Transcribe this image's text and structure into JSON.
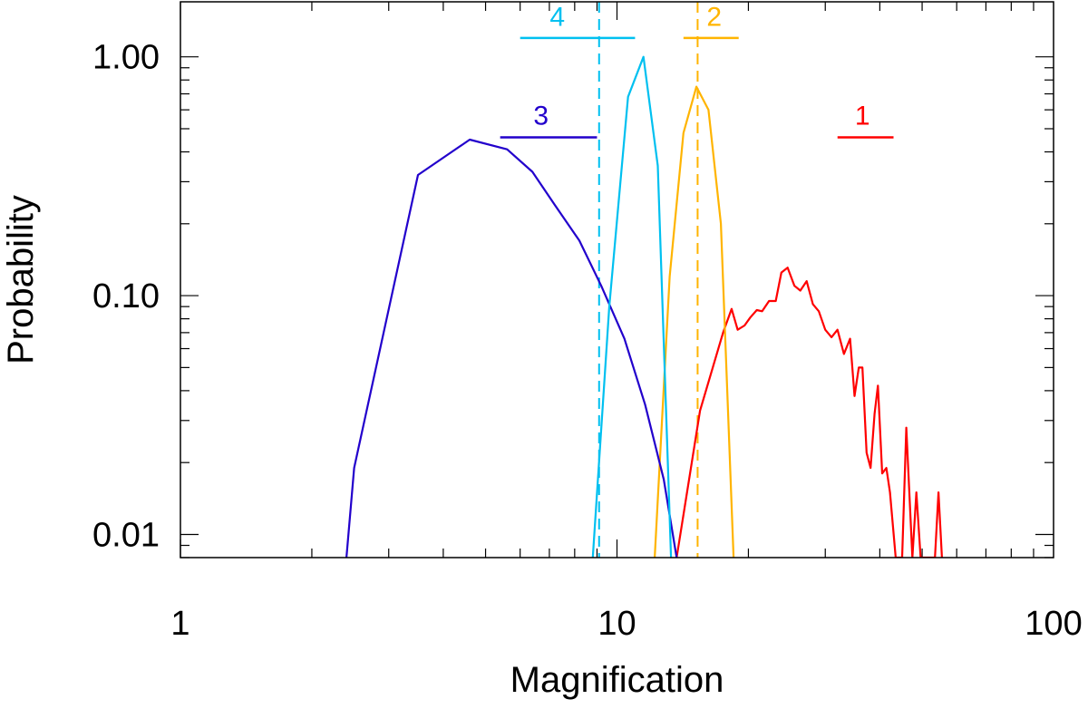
{
  "chart_data": {
    "type": "line",
    "xlabel": "Magnification",
    "ylabel": "Probability",
    "xscale": "log",
    "yscale": "log",
    "xlim": [
      1,
      100
    ],
    "ylim": [
      0.008,
      1.7
    ],
    "x_tick_labels": [
      "1",
      "10",
      "100"
    ],
    "x_ticks": [
      1,
      10,
      100
    ],
    "y_tick_labels": [
      "0.01",
      "0.10",
      "1.00"
    ],
    "y_ticks": [
      0.01,
      0.1,
      1.0
    ],
    "series": [
      {
        "name": "1",
        "color": "#ff0000",
        "x": [
          13.7,
          15.5,
          17.5,
          18.3,
          18.9,
          19.6,
          20.2,
          20.9,
          21.5,
          22.3,
          23.1,
          23.8,
          24.6,
          25.5,
          26.3,
          27.2,
          28.1,
          29.0,
          30.0,
          31.0,
          32.0,
          33.1,
          34.2,
          35.0,
          35.8,
          36.5,
          37.3,
          38.1,
          38.9,
          39.6,
          40.5,
          41.4,
          42.2,
          43.5,
          45.0,
          46.0,
          47.5,
          48.5,
          49.6,
          50.5,
          51.5,
          53.5,
          54.5,
          55.5
        ],
        "y": [
          0.008,
          0.033,
          0.07,
          0.088,
          0.072,
          0.075,
          0.081,
          0.087,
          0.086,
          0.095,
          0.095,
          0.125,
          0.131,
          0.11,
          0.105,
          0.115,
          0.092,
          0.086,
          0.072,
          0.067,
          0.072,
          0.057,
          0.066,
          0.038,
          0.05,
          0.05,
          0.022,
          0.019,
          0.032,
          0.042,
          0.018,
          0.019,
          0.015,
          0.008,
          0.008,
          0.028,
          0.008,
          0.015,
          0.008,
          0.008,
          0.008,
          0.008,
          0.015,
          0.008
        ]
      },
      {
        "name": "2",
        "color": "#ffb400",
        "x": [
          12.2,
          13.2,
          14.2,
          15.2,
          16.2,
          17.3,
          18.5
        ],
        "y": [
          0.008,
          0.12,
          0.48,
          0.75,
          0.6,
          0.2,
          0.008
        ]
      },
      {
        "name": "3",
        "color": "#2200cc",
        "x": [
          2.4,
          2.5,
          3.5,
          4.6,
          5.6,
          6.4,
          7.2,
          8.2,
          9.2,
          10.4,
          11.6,
          12.8,
          13.7
        ],
        "y": [
          0.008,
          0.019,
          0.32,
          0.45,
          0.41,
          0.33,
          0.24,
          0.17,
          0.11,
          0.066,
          0.035,
          0.017,
          0.008
        ]
      },
      {
        "name": "4",
        "color": "#00c0f0",
        "x": [
          8.8,
          9.6,
          10.6,
          11.5,
          12.4,
          13.3
        ],
        "y": [
          0.008,
          0.09,
          0.68,
          1.0,
          0.35,
          0.008
        ]
      }
    ],
    "range_bars": [
      {
        "name": "1",
        "color": "#ff0000",
        "x": [
          32,
          43
        ],
        "y": 0.46
      },
      {
        "name": "2",
        "color": "#ffb400",
        "x": [
          14.2,
          19.0
        ],
        "y": 1.2
      },
      {
        "name": "3",
        "color": "#2200cc",
        "x": [
          5.4,
          9.0
        ],
        "y": 0.46
      },
      {
        "name": "4",
        "color": "#00c0f0",
        "x": [
          6.0,
          11.0
        ],
        "y": 1.2
      }
    ],
    "vlines": [
      {
        "x": 9.1,
        "color": "#00c0f0",
        "style": "dashed"
      },
      {
        "x": 15.3,
        "color": "#ffb400",
        "style": "dashed"
      }
    ],
    "series_label_positions": [
      {
        "name": "1",
        "x": 36.5,
        "y": 0.52
      },
      {
        "name": "2",
        "x": 16.7,
        "y": 1.35
      },
      {
        "name": "3",
        "x": 6.7,
        "y": 0.52
      },
      {
        "name": "4",
        "x": 7.3,
        "y": 1.35
      }
    ]
  }
}
